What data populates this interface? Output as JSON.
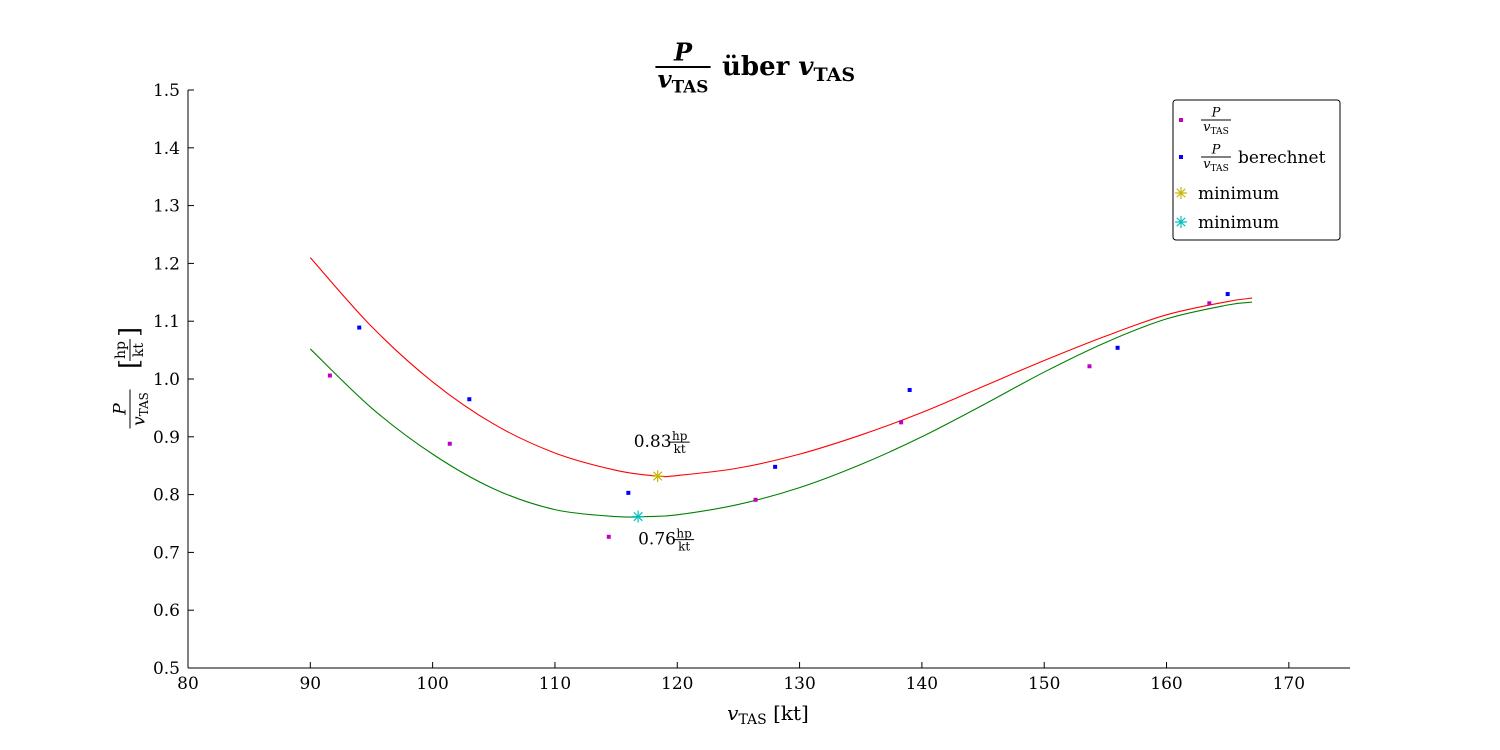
{
  "chart_data": {
    "type": "scatter",
    "title": {
      "frac_num": "P",
      "frac_den_var": "v",
      "frac_den_sub": "TAS",
      "middle": " über ",
      "var": "v",
      "sub": "TAS"
    },
    "xlabel": {
      "var": "v",
      "sub": "TAS",
      "unit": "[kt]"
    },
    "ylabel": {
      "frac_num": "P",
      "frac_den_var": "v",
      "frac_den_sub": "TAS",
      "unit_num": "hp",
      "unit_den": "kt"
    },
    "xlim": [
      80,
      175
    ],
    "ylim": [
      0.5,
      1.5
    ],
    "xticks": [
      80,
      90,
      100,
      110,
      120,
      130,
      140,
      150,
      160,
      170
    ],
    "yticks": [
      0.5,
      0.6,
      0.7,
      0.8,
      0.9,
      1.0,
      1.1,
      1.2,
      1.3,
      1.4,
      1.5
    ],
    "xtick_labels": [
      "80",
      "90",
      "100",
      "110",
      "120",
      "130",
      "140",
      "150",
      "160",
      "170"
    ],
    "ytick_labels": [
      "0.5",
      "0.6",
      "0.7",
      "0.8",
      "0.9",
      "1.0",
      "1.1",
      "1.2",
      "1.3",
      "1.4",
      "1.5"
    ],
    "grid": false,
    "legend_position": "top-right",
    "series": [
      {
        "name": "P/v_TAS",
        "legend_label": {
          "frac_num": "P",
          "frac_den_var": "v",
          "frac_den_sub": "TAS",
          "suffix": ""
        },
        "kind": "points",
        "color": "#bf00bf",
        "x": [
          91.6,
          101.4,
          114.4,
          126.4,
          138.3,
          153.7,
          163.5
        ],
        "y": [
          1.006,
          0.888,
          0.727,
          0.791,
          0.925,
          1.022,
          1.131
        ]
      },
      {
        "name": "P/v_TAS berechnet",
        "legend_label": {
          "frac_num": "P",
          "frac_den_var": "v",
          "frac_den_sub": "TAS",
          "suffix": " berechnet"
        },
        "kind": "points",
        "color": "#0000ff",
        "x": [
          94.0,
          103.0,
          116.0,
          128.0,
          139.0,
          156.0,
          165.0
        ],
        "y": [
          1.089,
          0.965,
          0.803,
          0.848,
          0.981,
          1.054,
          1.147
        ]
      },
      {
        "name": "fit-red",
        "kind": "curve",
        "color": "#ff0000",
        "x": [
          90,
          95,
          100,
          105,
          110,
          115,
          118.4,
          120,
          125,
          130,
          135,
          140,
          145,
          150,
          155,
          160,
          165,
          167
        ],
        "y": [
          1.21,
          1.091,
          0.995,
          0.922,
          0.872,
          0.842,
          0.832,
          0.833,
          0.846,
          0.87,
          0.903,
          0.942,
          0.987,
          1.032,
          1.074,
          1.111,
          1.134,
          1.14
        ]
      },
      {
        "name": "fit-green",
        "kind": "curve",
        "color": "#008000",
        "x": [
          90,
          95,
          100,
          105,
          110,
          115,
          117.5,
          120,
          125,
          130,
          135,
          140,
          145,
          150,
          155,
          160,
          165,
          167
        ],
        "y": [
          1.052,
          0.95,
          0.87,
          0.81,
          0.774,
          0.762,
          0.762,
          0.765,
          0.783,
          0.812,
          0.852,
          0.9,
          0.955,
          1.012,
          1.063,
          1.104,
          1.128,
          1.133
        ]
      }
    ],
    "minima": [
      {
        "name": "minimum",
        "color": "#c8b400",
        "x": 118.4,
        "y": 0.832,
        "label_value": "0.83",
        "label_unit_num": "hp",
        "label_unit_den": "kt",
        "label_side": "above"
      },
      {
        "name": "minimum",
        "color": "#00bfbf",
        "x": 116.8,
        "y": 0.762,
        "label_value": "0.76",
        "label_unit_num": "hp",
        "label_unit_den": "kt",
        "label_side": "below"
      }
    ]
  }
}
